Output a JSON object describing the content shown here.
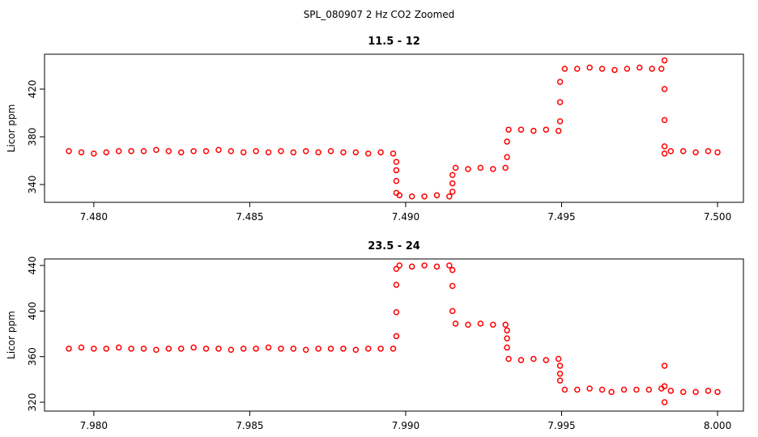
{
  "title": "SPL_080907  2 Hz CO2 Zoomed",
  "chart_data": [
    {
      "type": "scatter",
      "title": "11.5 - 12",
      "y_label": "Licor ppm",
      "color": "#ff0000",
      "x": [
        7.4792,
        7.4796,
        7.48,
        7.4804,
        7.4808,
        7.4812,
        7.4816,
        7.482,
        7.4824,
        7.4828,
        7.4832,
        7.4836,
        7.484,
        7.4844,
        7.4848,
        7.4852,
        7.4856,
        7.486,
        7.4864,
        7.4868,
        7.4872,
        7.4876,
        7.488,
        7.4884,
        7.4888,
        7.4892,
        7.4896,
        7.4897,
        7.4897,
        7.4897,
        7.4897,
        7.4898,
        7.4902,
        7.4906,
        7.491,
        7.4914,
        7.4915,
        7.4915,
        7.4915,
        7.4916,
        7.492,
        7.4924,
        7.4928,
        7.4932,
        7.49325,
        7.49325,
        7.4933,
        7.4937,
        7.4941,
        7.4945,
        7.4949,
        7.49495,
        7.49495,
        7.49495,
        7.4951,
        7.4955,
        7.4959,
        7.4963,
        7.4967,
        7.4971,
        7.4975,
        7.4979,
        7.4982,
        7.4983,
        7.4983,
        7.4983,
        7.4983,
        7.4983,
        7.4985,
        7.4989,
        7.4993,
        7.4997,
        7.5
      ],
      "y": [
        368,
        367,
        366,
        367,
        368,
        368,
        368,
        369,
        368,
        367,
        368,
        368,
        369,
        368,
        367,
        368,
        367,
        368,
        367,
        368,
        367,
        368,
        367,
        367,
        366,
        367,
        366,
        359,
        352,
        343,
        333,
        331,
        330,
        330,
        331,
        330,
        334,
        341,
        348,
        354,
        353,
        354,
        353,
        354,
        363,
        376,
        386,
        386,
        385,
        386,
        385,
        393,
        409,
        426,
        437,
        437,
        438,
        437,
        436,
        437,
        438,
        437,
        437,
        444,
        420,
        394,
        372,
        366,
        368,
        368,
        367,
        368,
        367
      ],
      "xlim": [
        7.47842,
        7.50083
      ],
      "ylim": [
        325.1,
        449.2
      ],
      "xticks": [
        {
          "value": 7.48,
          "label": "7.480"
        },
        {
          "value": 7.485,
          "label": "7.485"
        },
        {
          "value": 7.49,
          "label": "7.490"
        },
        {
          "value": 7.495,
          "label": "7.495"
        },
        {
          "value": 7.5,
          "label": "7.500"
        }
      ],
      "yticks": [
        340,
        380,
        420
      ]
    },
    {
      "type": "scatter",
      "title": "23.5 - 24",
      "y_label": "Licor ppm",
      "color": "#ff0000",
      "x": [
        7.9792,
        7.9796,
        7.98,
        7.9804,
        7.9808,
        7.9812,
        7.9816,
        7.982,
        7.9824,
        7.9828,
        7.9832,
        7.9836,
        7.984,
        7.9844,
        7.9848,
        7.9852,
        7.9856,
        7.986,
        7.9864,
        7.9868,
        7.9872,
        7.9876,
        7.988,
        7.9884,
        7.9888,
        7.9892,
        7.9896,
        7.9897,
        7.9897,
        7.9897,
        7.9897,
        7.9898,
        7.9902,
        7.9906,
        7.991,
        7.9914,
        7.9915,
        7.9915,
        7.9915,
        7.9916,
        7.992,
        7.9924,
        7.9928,
        7.9932,
        7.99325,
        7.99325,
        7.99325,
        7.9933,
        7.9937,
        7.9941,
        7.9945,
        7.9949,
        7.99495,
        7.99495,
        7.99495,
        7.9951,
        7.9955,
        7.9959,
        7.9963,
        7.9966,
        7.997,
        7.9974,
        7.9978,
        7.9982,
        7.9983,
        7.9983,
        7.9983,
        7.9985,
        7.9989,
        7.9993,
        7.9997,
        8.0
      ],
      "y": [
        367,
        368,
        367,
        367,
        368,
        367,
        367,
        366,
        367,
        367,
        368,
        367,
        367,
        366,
        367,
        367,
        368,
        367,
        367,
        366,
        367,
        367,
        367,
        366,
        367,
        367,
        367,
        378,
        399,
        423,
        437,
        440,
        439,
        440,
        439,
        440,
        436,
        422,
        400,
        389,
        388,
        389,
        388,
        388,
        383,
        376,
        368,
        358,
        357,
        358,
        357,
        358,
        352,
        345,
        339,
        331,
        331,
        332,
        331,
        329,
        331,
        331,
        331,
        332,
        352,
        334,
        320,
        330,
        329,
        329,
        330,
        329
      ],
      "xlim": [
        7.97842,
        8.00083
      ],
      "ylim": [
        312.2,
        445.7
      ],
      "xticks": [
        {
          "value": 7.98,
          "label": "7.980"
        },
        {
          "value": 7.985,
          "label": "7.985"
        },
        {
          "value": 7.99,
          "label": "7.990"
        },
        {
          "value": 7.995,
          "label": "7.995"
        },
        {
          "value": 8,
          "label": "8.000"
        }
      ],
      "yticks": [
        320,
        360,
        400,
        440
      ]
    }
  ]
}
